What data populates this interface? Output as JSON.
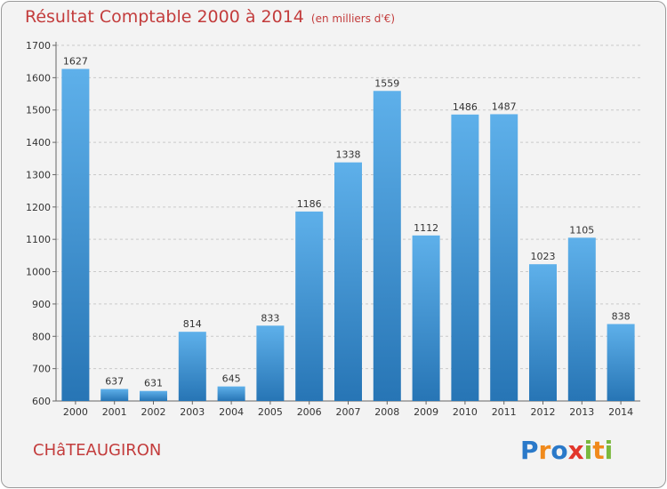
{
  "title": "Résultat Comptable 2000 à 2014",
  "subtitle": "(en milliers d'€)",
  "city": "CHâTEAUGIRON",
  "logo": {
    "letters": [
      "P",
      "r",
      "o",
      "x",
      "i",
      "t",
      "i"
    ],
    "colors": [
      "#2a79c9",
      "#f08a1c",
      "#2a79c9",
      "#e2362b",
      "#7ab83d",
      "#f08a1c",
      "#7ab83d"
    ]
  },
  "colors": {
    "bar_light": "#5eb0ea",
    "bar_dark": "#2775b5",
    "title": "#c33c3c",
    "grid": "#c9c9c9"
  },
  "chart_data": {
    "type": "bar",
    "title": "Résultat Comptable 2000 à 2014",
    "xlabel": "",
    "ylabel": "",
    "ylim": [
      600,
      1700
    ],
    "yticks": [
      600,
      700,
      800,
      900,
      1000,
      1100,
      1200,
      1300,
      1400,
      1500,
      1600,
      1700
    ],
    "categories": [
      "2000",
      "2001",
      "2002",
      "2003",
      "2004",
      "2005",
      "2006",
      "2007",
      "2008",
      "2009",
      "2010",
      "2011",
      "2012",
      "2013",
      "2014"
    ],
    "values": [
      1627,
      637,
      631,
      814,
      645,
      833,
      1186,
      1338,
      1559,
      1112,
      1486,
      1487,
      1023,
      1105,
      838
    ],
    "grid": true
  }
}
